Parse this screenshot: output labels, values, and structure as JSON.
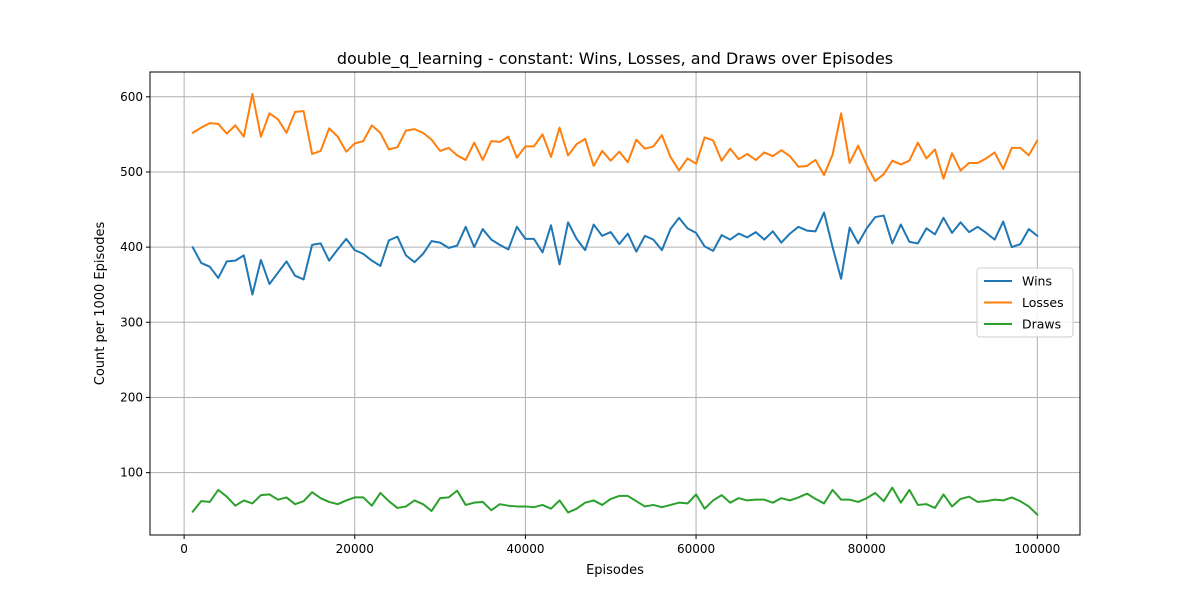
{
  "chart_data": {
    "type": "line",
    "title": "double_q_learning - constant: Wins, Losses, and Draws over Episodes",
    "xlabel": "Episodes",
    "ylabel": "Count per 1000 Episodes",
    "xlim": [
      -4000,
      105000
    ],
    "ylim": [
      17,
      633
    ],
    "x_ticks": [
      0,
      20000,
      40000,
      60000,
      80000,
      100000
    ],
    "x_tick_labels": [
      "0",
      "20000",
      "40000",
      "60000",
      "80000",
      "100000"
    ],
    "y_ticks": [
      100,
      200,
      300,
      400,
      500,
      600
    ],
    "y_tick_labels": [
      "100",
      "200",
      "300",
      "400",
      "500",
      "600"
    ],
    "grid": true,
    "legend_position": "center-right",
    "x_start": 1000,
    "x_step": 1000,
    "series": [
      {
        "name": "Wins",
        "color": "#1f77b4",
        "values": [
          400,
          379,
          374,
          359,
          381,
          382,
          389,
          337,
          383,
          351,
          366,
          381,
          362,
          357,
          403,
          405,
          382,
          397,
          411,
          396,
          391,
          382,
          375,
          409,
          414,
          389,
          380,
          391,
          408,
          406,
          399,
          402,
          427,
          400,
          424,
          410,
          403,
          397,
          427,
          411,
          411,
          393,
          429,
          377,
          433,
          411,
          396,
          430,
          415,
          420,
          404,
          418,
          394,
          415,
          410,
          396,
          424,
          439,
          425,
          419,
          401,
          395,
          416,
          410,
          418,
          413,
          420,
          410,
          421,
          406,
          418,
          427,
          422,
          421,
          446,
          400,
          358,
          426,
          405,
          425,
          440,
          442,
          405,
          430,
          407,
          405,
          425,
          417,
          439,
          419,
          433,
          420,
          427,
          419,
          410,
          434,
          400,
          404,
          424,
          415
        ]
      },
      {
        "name": "Losses",
        "color": "#ff7f0e",
        "values": [
          552,
          559,
          565,
          564,
          551,
          562,
          547,
          604,
          547,
          578,
          570,
          552,
          580,
          581,
          524,
          528,
          558,
          547,
          527,
          538,
          541,
          562,
          552,
          530,
          533,
          555,
          557,
          552,
          543,
          528,
          532,
          522,
          516,
          539,
          516,
          541,
          540,
          547,
          519,
          534,
          534,
          550,
          520,
          559,
          522,
          537,
          544,
          508,
          528,
          515,
          527,
          513,
          543,
          531,
          534,
          549,
          520,
          502,
          518,
          511,
          546,
          542,
          515,
          531,
          517,
          524,
          516,
          526,
          521,
          529,
          521,
          507,
          508,
          516,
          496,
          523,
          578,
          512,
          535,
          509,
          488,
          497,
          515,
          510,
          515,
          539,
          518,
          530,
          491,
          525,
          502,
          512,
          512,
          518,
          526,
          504,
          532,
          532,
          522,
          542
        ]
      },
      {
        "name": "Draws",
        "color": "#2ca02c",
        "values": [
          48,
          62,
          61,
          77,
          68,
          56,
          63,
          59,
          70,
          71,
          64,
          67,
          58,
          62,
          74,
          66,
          61,
          58,
          63,
          67,
          67,
          56,
          73,
          62,
          53,
          55,
          63,
          58,
          49,
          66,
          67,
          76,
          57,
          60,
          61,
          50,
          58,
          56,
          55,
          55,
          54,
          57,
          52,
          63,
          47,
          52,
          60,
          63,
          57,
          65,
          69,
          69,
          62,
          55,
          57,
          54,
          57,
          60,
          59,
          71,
          52,
          63,
          70,
          60,
          66,
          63,
          64,
          64,
          60,
          66,
          63,
          67,
          72,
          65,
          59,
          77,
          64,
          64,
          61,
          66,
          73,
          62,
          80,
          60,
          77,
          57,
          58,
          53,
          71,
          55,
          65,
          68,
          61,
          62,
          64,
          63,
          67,
          62,
          55,
          44
        ]
      }
    ]
  }
}
